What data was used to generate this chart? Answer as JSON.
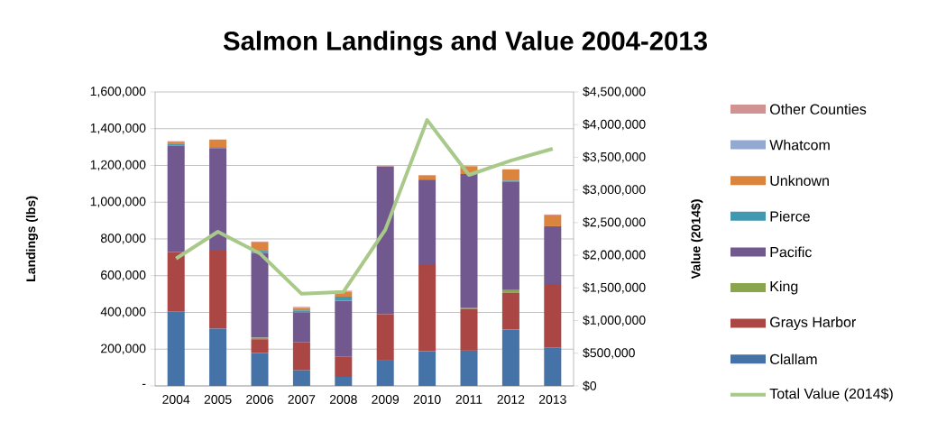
{
  "chart_data": {
    "type": "bar",
    "title": "Salmon Landings and Value 2004-2013",
    "ylabel": "Landings (lbs)",
    "y2label": "Value (2014$)",
    "categories": [
      "2004",
      "2005",
      "2006",
      "2007",
      "2008",
      "2009",
      "2010",
      "2011",
      "2012",
      "2013"
    ],
    "stacked": true,
    "grid": "y",
    "legend": "right",
    "ylim": [
      0,
      1600000
    ],
    "yticks": [
      {
        "value": 0,
        "label": "-"
      },
      {
        "value": 200000,
        "label": "200,000"
      },
      {
        "value": 400000,
        "label": "400,000"
      },
      {
        "value": 600000,
        "label": "600,000"
      },
      {
        "value": 800000,
        "label": "800,000"
      },
      {
        "value": 1000000,
        "label": "1,000,000"
      },
      {
        "value": 1200000,
        "label": "1,200,000"
      },
      {
        "value": 1400000,
        "label": "1,400,000"
      },
      {
        "value": 1600000,
        "label": "1,600,000"
      }
    ],
    "y2lim": [
      0,
      4500000
    ],
    "y2ticks": [
      {
        "value": 0,
        "label": "$0"
      },
      {
        "value": 500000,
        "label": "$500,000"
      },
      {
        "value": 1000000,
        "label": "$1,000,000"
      },
      {
        "value": 1500000,
        "label": "$1,500,000"
      },
      {
        "value": 2000000,
        "label": "$2,000,000"
      },
      {
        "value": 2500000,
        "label": "$2,500,000"
      },
      {
        "value": 3000000,
        "label": "$3,000,000"
      },
      {
        "value": 3500000,
        "label": "$3,500,000"
      },
      {
        "value": 4000000,
        "label": "$4,000,000"
      },
      {
        "value": 4500000,
        "label": "$4,500,000"
      }
    ],
    "series": [
      {
        "name": "Clallam",
        "color": "#4572a7",
        "values": [
          406000,
          312000,
          179000,
          85000,
          49000,
          142000,
          189000,
          192000,
          307000,
          209000
        ]
      },
      {
        "name": "Grays Harbor",
        "color": "#aa4643",
        "values": [
          323000,
          424000,
          75000,
          152000,
          109000,
          248000,
          473000,
          227000,
          200000,
          346000
        ]
      },
      {
        "name": "King",
        "color": "#89a54e",
        "values": [
          0,
          0,
          8000,
          0,
          0,
          0,
          0,
          8000,
          15000,
          0
        ]
      },
      {
        "name": "Pacific",
        "color": "#71588f",
        "values": [
          579000,
          559000,
          462000,
          163000,
          305000,
          804000,
          457000,
          726000,
          589000,
          314000
        ]
      },
      {
        "name": "Pierce",
        "color": "#4198af",
        "values": [
          8000,
          5000,
          11000,
          11000,
          23000,
          0,
          5000,
          0,
          6000,
          0
        ]
      },
      {
        "name": "Unknown",
        "color": "#db843d",
        "values": [
          9000,
          41000,
          46000,
          13000,
          26000,
          0,
          21000,
          43000,
          62000,
          59000
        ]
      },
      {
        "name": "Whatcom",
        "color": "#93a9cf",
        "values": [
          null,
          0,
          0,
          0,
          0,
          0,
          0,
          0,
          0,
          0
        ]
      },
      {
        "name": "Other Counties",
        "color": "#d19392",
        "values": [
          7000,
          0,
          5000,
          6000,
          6000,
          5000,
          3000,
          0,
          0,
          5000
        ]
      },
      {
        "name": "Total Value (2014$)",
        "type": "line",
        "axis": "y2",
        "color": "#a9c98a",
        "values": [
          1950000,
          2360000,
          2030000,
          1410000,
          1440000,
          2390000,
          4070000,
          3230000,
          3450000,
          3630000
        ]
      }
    ]
  }
}
